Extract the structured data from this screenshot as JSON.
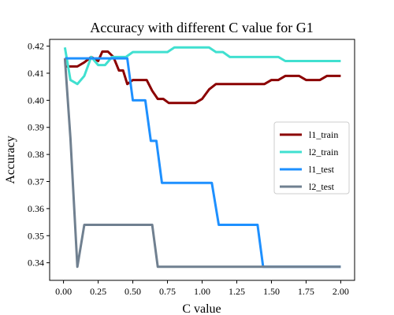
{
  "chart_data": {
    "type": "line",
    "title": "Accuracy with different C value for G1",
    "xlabel": "C value",
    "ylabel": "Accuracy",
    "xlim": [
      -0.1,
      2.1
    ],
    "ylim": [
      0.3335,
      0.4225
    ],
    "xticks": [
      "0.00",
      "0.25",
      "0.50",
      "0.75",
      "1.00",
      "1.25",
      "1.50",
      "1.75",
      "2.00"
    ],
    "yticks": [
      "0.34",
      "0.35",
      "0.36",
      "0.37",
      "0.38",
      "0.39",
      "0.40",
      "0.41",
      "0.42"
    ],
    "grid": false,
    "legend_position": "center-right",
    "series": [
      {
        "name": "l1_train",
        "color": "#8b0000",
        "points": [
          [
            0.01,
            0.4125
          ],
          [
            0.05,
            0.4125
          ],
          [
            0.1,
            0.4125
          ],
          [
            0.15,
            0.414
          ],
          [
            0.2,
            0.416
          ],
          [
            0.25,
            0.4145
          ],
          [
            0.28,
            0.418
          ],
          [
            0.32,
            0.418
          ],
          [
            0.36,
            0.416
          ],
          [
            0.4,
            0.411
          ],
          [
            0.43,
            0.411
          ],
          [
            0.46,
            0.406
          ],
          [
            0.5,
            0.4075
          ],
          [
            0.55,
            0.4075
          ],
          [
            0.6,
            0.4075
          ],
          [
            0.64,
            0.4035
          ],
          [
            0.68,
            0.4005
          ],
          [
            0.72,
            0.4005
          ],
          [
            0.76,
            0.399
          ],
          [
            0.8,
            0.399
          ],
          [
            0.85,
            0.399
          ],
          [
            0.9,
            0.399
          ],
          [
            0.95,
            0.399
          ],
          [
            1.0,
            0.4005
          ],
          [
            1.05,
            0.404
          ],
          [
            1.1,
            0.406
          ],
          [
            1.15,
            0.406
          ],
          [
            1.2,
            0.406
          ],
          [
            1.3,
            0.406
          ],
          [
            1.4,
            0.406
          ],
          [
            1.45,
            0.406
          ],
          [
            1.5,
            0.4075
          ],
          [
            1.55,
            0.4075
          ],
          [
            1.6,
            0.409
          ],
          [
            1.65,
            0.409
          ],
          [
            1.7,
            0.409
          ],
          [
            1.75,
            0.4075
          ],
          [
            1.8,
            0.4075
          ],
          [
            1.85,
            0.4075
          ],
          [
            1.9,
            0.409
          ],
          [
            2.0,
            0.409
          ]
        ]
      },
      {
        "name": "l2_train",
        "color": "#40e0d0",
        "points": [
          [
            0.01,
            0.4195
          ],
          [
            0.05,
            0.4075
          ],
          [
            0.1,
            0.406
          ],
          [
            0.15,
            0.409
          ],
          [
            0.2,
            0.416
          ],
          [
            0.25,
            0.413
          ],
          [
            0.3,
            0.413
          ],
          [
            0.35,
            0.416
          ],
          [
            0.4,
            0.416
          ],
          [
            0.45,
            0.416
          ],
          [
            0.5,
            0.4178
          ],
          [
            0.55,
            0.4178
          ],
          [
            0.6,
            0.4178
          ],
          [
            0.65,
            0.4178
          ],
          [
            0.7,
            0.4178
          ],
          [
            0.75,
            0.4178
          ],
          [
            0.8,
            0.4195
          ],
          [
            0.85,
            0.4195
          ],
          [
            0.9,
            0.4195
          ],
          [
            0.95,
            0.4195
          ],
          [
            1.0,
            0.4195
          ],
          [
            1.05,
            0.4195
          ],
          [
            1.1,
            0.4178
          ],
          [
            1.15,
            0.4178
          ],
          [
            1.2,
            0.416
          ],
          [
            1.3,
            0.416
          ],
          [
            1.4,
            0.416
          ],
          [
            1.5,
            0.416
          ],
          [
            1.55,
            0.416
          ],
          [
            1.6,
            0.4145
          ],
          [
            1.7,
            0.4145
          ],
          [
            1.8,
            0.4145
          ],
          [
            1.9,
            0.4145
          ],
          [
            2.0,
            0.4145
          ]
        ]
      },
      {
        "name": "l1_test",
        "color": "#1e90ff",
        "points": [
          [
            0.01,
            0.4155
          ],
          [
            0.1,
            0.4155
          ],
          [
            0.2,
            0.4155
          ],
          [
            0.3,
            0.4155
          ],
          [
            0.4,
            0.4155
          ],
          [
            0.46,
            0.4155
          ],
          [
            0.5,
            0.4
          ],
          [
            0.55,
            0.4
          ],
          [
            0.59,
            0.4
          ],
          [
            0.63,
            0.385
          ],
          [
            0.67,
            0.385
          ],
          [
            0.71,
            0.3695
          ],
          [
            0.8,
            0.3695
          ],
          [
            0.9,
            0.3695
          ],
          [
            1.0,
            0.3695
          ],
          [
            1.07,
            0.3695
          ],
          [
            1.12,
            0.354
          ],
          [
            1.2,
            0.354
          ],
          [
            1.3,
            0.354
          ],
          [
            1.4,
            0.354
          ],
          [
            1.44,
            0.3385
          ],
          [
            1.6,
            0.3385
          ],
          [
            1.8,
            0.3385
          ],
          [
            2.0,
            0.3385
          ]
        ]
      },
      {
        "name": "l2_test",
        "color": "#708090",
        "points": [
          [
            0.01,
            0.4155
          ],
          [
            0.05,
            0.386
          ],
          [
            0.1,
            0.3385
          ],
          [
            0.15,
            0.354
          ],
          [
            0.2,
            0.354
          ],
          [
            0.3,
            0.354
          ],
          [
            0.4,
            0.354
          ],
          [
            0.5,
            0.354
          ],
          [
            0.58,
            0.354
          ],
          [
            0.64,
            0.354
          ],
          [
            0.68,
            0.3385
          ],
          [
            0.8,
            0.3385
          ],
          [
            1.0,
            0.3385
          ],
          [
            1.2,
            0.3385
          ],
          [
            1.4,
            0.3385
          ],
          [
            1.6,
            0.3385
          ],
          [
            1.8,
            0.3385
          ],
          [
            2.0,
            0.3385
          ]
        ]
      }
    ]
  }
}
